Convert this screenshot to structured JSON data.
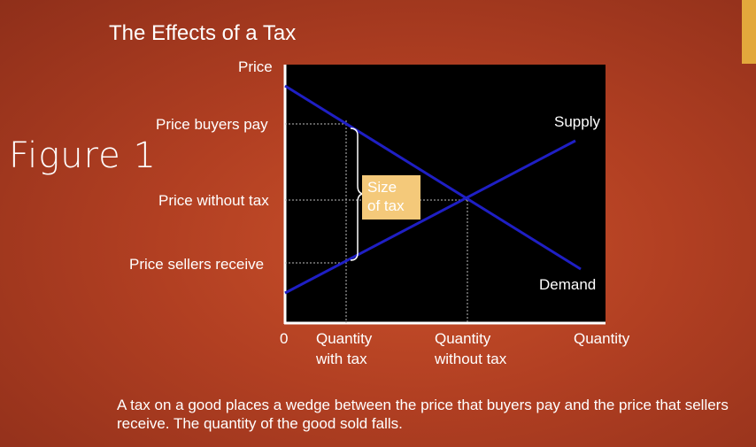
{
  "slide": {
    "title": "The Effects of a Tax",
    "figure_label": "Figure 1",
    "caption": "A tax on a good places a wedge between the price that buyers pay and the price that sellers receive. The quantity of the good sold falls."
  },
  "graph": {
    "y_axis_label": "Price",
    "x_axis_label": "Quantity",
    "origin_label": "0",
    "price_labels": {
      "buyers_pay": "Price buyers pay",
      "without_tax": "Price without tax",
      "sellers_receive": "Price sellers receive"
    },
    "quantity_labels": {
      "with_tax_line1": "Quantity",
      "with_tax_line2": "with tax",
      "without_tax_line1": "Quantity",
      "without_tax_line2": "without tax"
    },
    "curve_labels": {
      "supply": "Supply",
      "demand": "Demand"
    },
    "tax_box": {
      "line1": "Size",
      "line2": "of tax"
    }
  },
  "colors": {
    "plot_background": "#000000",
    "curves": "#1f1fc4",
    "tax_box": "#f4c97a",
    "accent": "#e3a83c"
  }
}
